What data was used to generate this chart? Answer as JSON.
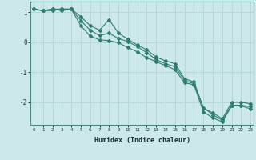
{
  "xlabel": "Humidex (Indice chaleur)",
  "bg_color": "#cce8e8",
  "grid_color": "#b8d8d8",
  "line_color": "#2e7d6e",
  "x_ticks": [
    0,
    1,
    2,
    3,
    4,
    5,
    6,
    7,
    8,
    9,
    10,
    11,
    12,
    13,
    14,
    15,
    16,
    17,
    18,
    19,
    20,
    21,
    22,
    23
  ],
  "ylim": [
    -2.75,
    1.35
  ],
  "xlim": [
    -0.3,
    23.3
  ],
  "line1": [
    1.1,
    1.05,
    1.1,
    1.1,
    1.1,
    0.85,
    0.55,
    0.4,
    0.75,
    0.3,
    0.1,
    -0.1,
    -0.25,
    -0.5,
    -0.62,
    -0.72,
    -1.22,
    -1.32,
    -2.2,
    -2.35,
    -2.55,
    -2.0,
    -2.0,
    -2.05
  ],
  "line2": [
    1.1,
    1.05,
    1.1,
    1.05,
    1.1,
    0.72,
    0.4,
    0.22,
    0.3,
    0.12,
    0.02,
    -0.15,
    -0.35,
    -0.58,
    -0.72,
    -0.82,
    -1.28,
    -1.38,
    -2.18,
    -2.42,
    -2.6,
    -2.1,
    -2.1,
    -2.15
  ],
  "line3": [
    1.1,
    1.05,
    1.05,
    1.1,
    1.1,
    0.55,
    0.2,
    0.08,
    0.05,
    -0.02,
    -0.18,
    -0.32,
    -0.52,
    -0.65,
    -0.78,
    -0.92,
    -1.35,
    -1.42,
    -2.32,
    -2.52,
    -2.65,
    -2.12,
    -2.12,
    -2.22
  ]
}
